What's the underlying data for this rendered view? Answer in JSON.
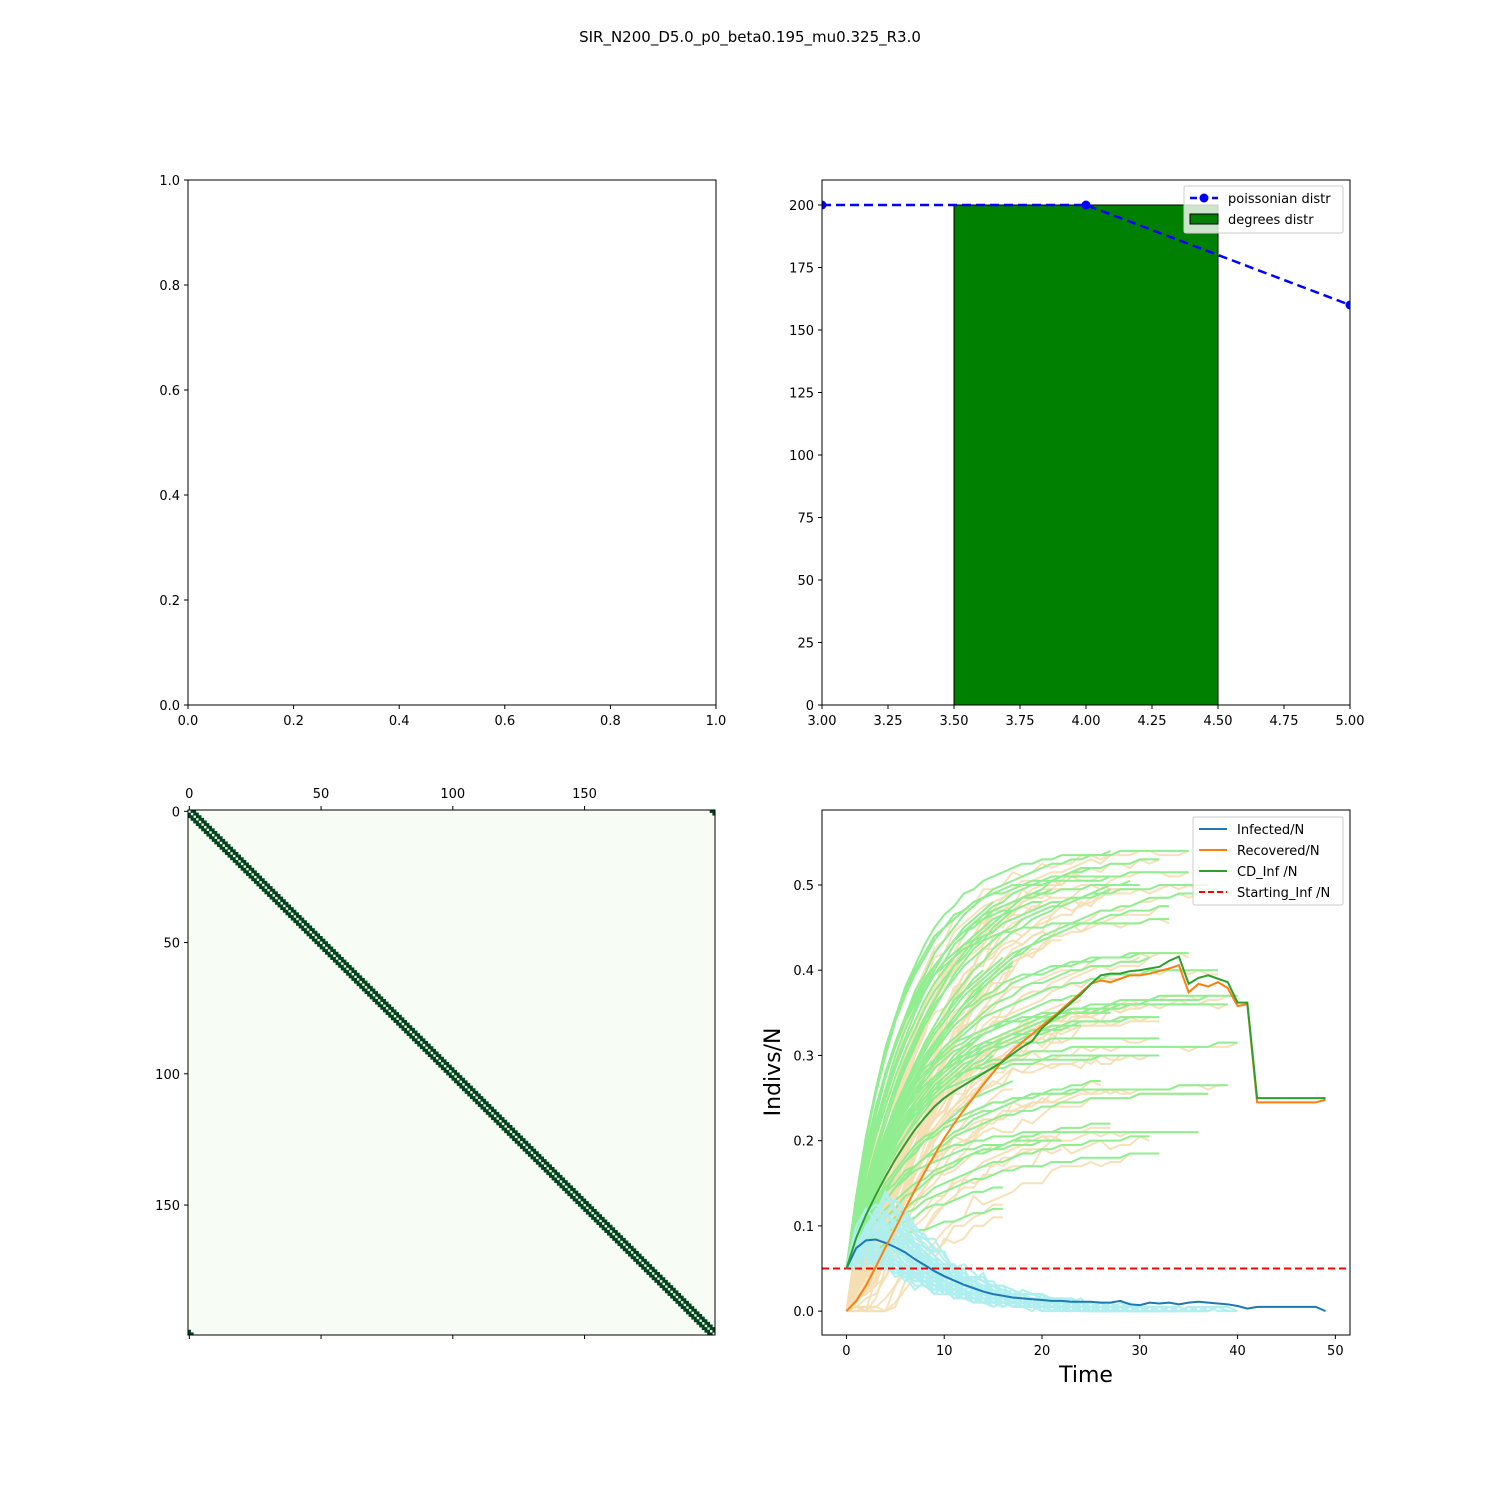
{
  "figure": {
    "title": "SIR_N200_D5.0_p0_beta0.195_mu0.325_R3.0"
  },
  "colors": {
    "degree_bar": "#008000",
    "poisson": "#0000ff",
    "infected": "#1f77b4",
    "recovered": "#ff7f0e",
    "cd_inf": "#2ca02c",
    "starting": "#ff0000",
    "sim_infected": "#afeeee",
    "sim_recovered": "#f5deb3",
    "sim_cd_inf": "#90ee90",
    "matrix_bg": "#f7fcf5",
    "matrix_diag": "#00441b"
  },
  "chart_data": [
    {
      "id": "empty",
      "type": "empty",
      "xlim": [
        0,
        1
      ],
      "ylim": [
        0,
        1
      ],
      "xticks": [
        "0.0",
        "0.2",
        "0.4",
        "0.6",
        "0.8",
        "1.0"
      ],
      "yticks": [
        "0.0",
        "0.2",
        "0.4",
        "0.6",
        "0.8",
        "1.0"
      ]
    },
    {
      "id": "degrees",
      "type": "bar",
      "xlim": [
        3.0,
        5.0
      ],
      "ylim": [
        0,
        210
      ],
      "xticks": [
        "3.00",
        "3.25",
        "3.50",
        "3.75",
        "4.00",
        "4.25",
        "4.50",
        "4.75",
        "5.00"
      ],
      "yticks": [
        "0",
        "25",
        "50",
        "75",
        "100",
        "125",
        "150",
        "175",
        "200"
      ],
      "bars": [
        {
          "x0": 3.5,
          "x1": 4.5,
          "value": 200
        }
      ],
      "poisson": {
        "x": [
          3,
          4,
          5
        ],
        "y": [
          200,
          200,
          160
        ]
      },
      "legend": [
        "poissonian distr",
        "degrees distr"
      ]
    },
    {
      "id": "adjacency",
      "type": "heatmap",
      "size": 200,
      "structure": "ring lattice, each node linked to its 2 nearest neighbours on each side (degree 4)",
      "xticks": [
        "0",
        "50",
        "100",
        "150"
      ],
      "yticks": [
        "0",
        "50",
        "100",
        "150"
      ]
    },
    {
      "id": "sir",
      "type": "line",
      "xlim": [
        -2.5,
        51.5
      ],
      "ylim": [
        -0.028,
        0.588
      ],
      "xlabel": "Time",
      "ylabel": "Indivs/N",
      "xticks": [
        "0",
        "10",
        "20",
        "30",
        "40",
        "50"
      ],
      "yticks": [
        "0.0",
        "0.1",
        "0.2",
        "0.3",
        "0.4",
        "0.5"
      ],
      "legend": [
        "Infected/N",
        "Recovered/N",
        "CD_Inf /N",
        "Starting_Inf /N"
      ],
      "starting_inf": 0.05,
      "x": [
        0,
        1,
        2,
        3,
        4,
        5,
        6,
        7,
        8,
        9,
        10,
        11,
        12,
        13,
        14,
        15,
        16,
        17,
        18,
        19,
        20,
        21,
        22,
        23,
        24,
        25,
        26,
        27,
        28,
        29,
        30,
        31,
        32,
        33,
        34,
        35,
        36,
        37,
        38,
        39,
        40,
        41,
        42,
        43,
        44,
        45,
        46,
        47,
        48,
        49
      ],
      "series": [
        {
          "name": "Infected/N",
          "values": [
            0.05,
            0.074,
            0.083,
            0.084,
            0.08,
            0.075,
            0.069,
            0.061,
            0.054,
            0.047,
            0.041,
            0.036,
            0.031,
            0.027,
            0.023,
            0.02,
            0.018,
            0.016,
            0.015,
            0.014,
            0.013,
            0.012,
            0.012,
            0.011,
            0.011,
            0.011,
            0.01,
            0.01,
            0.012,
            0.008,
            0.007,
            0.01,
            0.009,
            0.01,
            0.008,
            0.01,
            0.011,
            0.01,
            0.009,
            0.008,
            0.006,
            0.003,
            0.005,
            0.005,
            0.005,
            0.005,
            0.005,
            0.005,
            0.005,
            0.0
          ]
        },
        {
          "name": "Recovered/N",
          "values": [
            0.0,
            0.012,
            0.03,
            0.052,
            0.075,
            0.097,
            0.12,
            0.142,
            0.163,
            0.183,
            0.203,
            0.22,
            0.236,
            0.251,
            0.266,
            0.28,
            0.294,
            0.306,
            0.316,
            0.325,
            0.335,
            0.344,
            0.354,
            0.364,
            0.374,
            0.384,
            0.388,
            0.386,
            0.39,
            0.394,
            0.394,
            0.396,
            0.399,
            0.402,
            0.406,
            0.374,
            0.384,
            0.381,
            0.386,
            0.379,
            0.358,
            0.36,
            0.245,
            0.245,
            0.245,
            0.245,
            0.245,
            0.245,
            0.245,
            0.248
          ]
        },
        {
          "name": "CD_Inf /N",
          "values": [
            0.05,
            0.086,
            0.113,
            0.136,
            0.158,
            0.178,
            0.196,
            0.213,
            0.227,
            0.24,
            0.25,
            0.258,
            0.265,
            0.272,
            0.279,
            0.286,
            0.293,
            0.302,
            0.31,
            0.317,
            0.332,
            0.342,
            0.352,
            0.362,
            0.372,
            0.384,
            0.394,
            0.396,
            0.396,
            0.399,
            0.4,
            0.402,
            0.404,
            0.411,
            0.416,
            0.384,
            0.391,
            0.394,
            0.39,
            0.386,
            0.362,
            0.362,
            0.25,
            0.25,
            0.25,
            0.25,
            0.25,
            0.25,
            0.25,
            0.25
          ]
        }
      ],
      "background_runs": {
        "count": 60,
        "description": "many individual simulation runs drawn in light colours behind the mean curves",
        "cd_inf_final_range": [
          0.14,
          0.56
        ],
        "infected_peak_range": [
          0.06,
          0.14
        ],
        "end_time_range": [
          14,
          40
        ]
      }
    }
  ]
}
